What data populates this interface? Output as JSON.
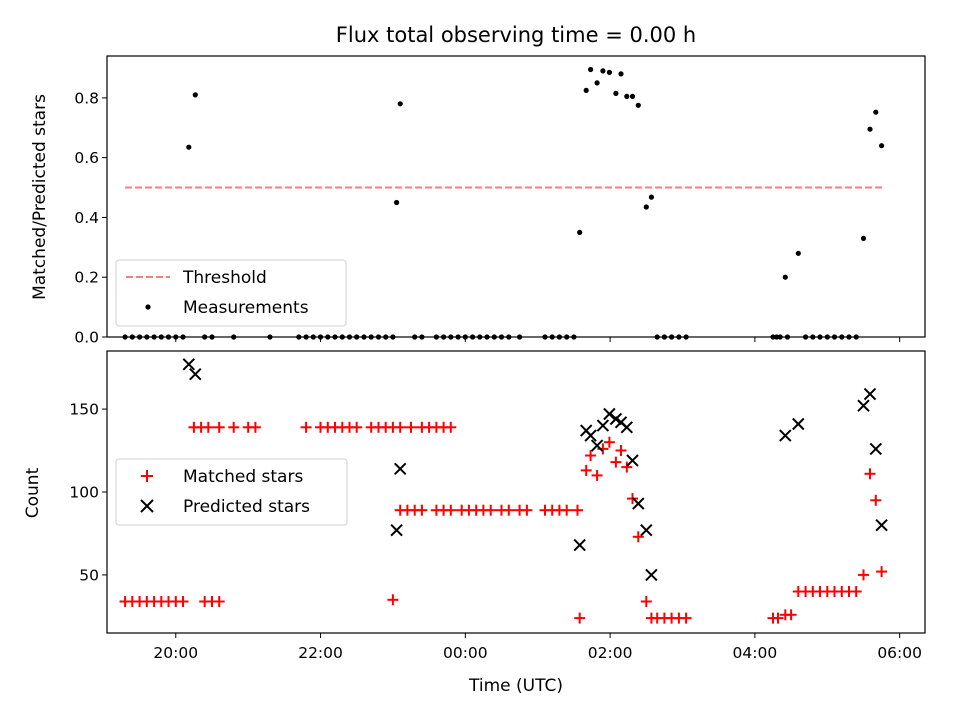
{
  "chart_data": [
    {
      "type": "scatter",
      "title": "Flux total observing time = 0.00 h",
      "ylabel": "Matched/Predicted stars",
      "xlabel": "",
      "ylim": [
        0,
        0.94
      ],
      "xlim": [
        -4.95,
        6.35
      ],
      "x_unit": "hours relative to 00:00 UTC",
      "yticks": [
        0.0,
        0.2,
        0.4,
        0.6,
        0.8
      ],
      "yticklabels": [
        "0.0",
        "0.2",
        "0.4",
        "0.6",
        "0.8"
      ],
      "legend_placement": "lower-left",
      "grid": false,
      "threshold": {
        "name": "Threshold",
        "value": 0.5,
        "x": [
          -4.7,
          5.78
        ],
        "color": "#f08080"
      },
      "series": [
        {
          "name": "Measurements",
          "color": "#000000",
          "marker": "dot",
          "points": [
            [
              -3.82,
              0.635
            ],
            [
              -3.73,
              0.81
            ],
            [
              -0.95,
              0.45
            ],
            [
              -0.9,
              0.78
            ],
            [
              1.58,
              0.35
            ],
            [
              1.67,
              0.825
            ],
            [
              1.73,
              0.895
            ],
            [
              1.82,
              0.85
            ],
            [
              1.9,
              0.89
            ],
            [
              1.99,
              0.885
            ],
            [
              2.08,
              0.815
            ],
            [
              2.15,
              0.88
            ],
            [
              2.23,
              0.805
            ],
            [
              2.31,
              0.805
            ],
            [
              2.39,
              0.775
            ],
            [
              2.5,
              0.435
            ],
            [
              2.57,
              0.468
            ],
            [
              4.42,
              0.2
            ],
            [
              4.6,
              0.28
            ],
            [
              5.5,
              0.33
            ],
            [
              5.59,
              0.695
            ],
            [
              5.67,
              0.752
            ],
            [
              5.75,
              0.64
            ],
            [
              -4.7,
              0
            ],
            [
              -4.6,
              0
            ],
            [
              -4.5,
              0
            ],
            [
              -4.4,
              0
            ],
            [
              -4.3,
              0
            ],
            [
              -4.2,
              0
            ],
            [
              -4.1,
              0
            ],
            [
              -4.0,
              0
            ],
            [
              -3.9,
              0
            ],
            [
              -3.6,
              0
            ],
            [
              -3.5,
              0
            ],
            [
              -3.2,
              0
            ],
            [
              -2.7,
              0
            ],
            [
              -2.3,
              0
            ],
            [
              -2.2,
              0
            ],
            [
              -2.1,
              0
            ],
            [
              -2.0,
              0
            ],
            [
              -1.9,
              0
            ],
            [
              -1.8,
              0
            ],
            [
              -1.7,
              0
            ],
            [
              -1.6,
              0
            ],
            [
              -1.5,
              0
            ],
            [
              -1.4,
              0
            ],
            [
              -1.3,
              0
            ],
            [
              -1.2,
              0
            ],
            [
              -1.1,
              0
            ],
            [
              -1.0,
              0
            ],
            [
              -0.7,
              0
            ],
            [
              -0.6,
              0
            ],
            [
              -0.4,
              0
            ],
            [
              -0.3,
              0
            ],
            [
              -0.2,
              0
            ],
            [
              -0.1,
              0
            ],
            [
              0.0,
              0
            ],
            [
              0.1,
              0
            ],
            [
              0.2,
              0
            ],
            [
              0.3,
              0
            ],
            [
              0.4,
              0
            ],
            [
              0.5,
              0
            ],
            [
              0.6,
              0
            ],
            [
              0.75,
              0
            ],
            [
              1.1,
              0
            ],
            [
              1.2,
              0
            ],
            [
              1.3,
              0
            ],
            [
              1.4,
              0
            ],
            [
              1.5,
              0
            ],
            [
              2.65,
              0
            ],
            [
              2.75,
              0
            ],
            [
              2.85,
              0
            ],
            [
              2.95,
              0
            ],
            [
              3.05,
              0
            ],
            [
              4.25,
              0
            ],
            [
              4.3,
              0
            ],
            [
              4.35,
              0
            ],
            [
              4.45,
              0
            ],
            [
              4.7,
              0
            ],
            [
              4.8,
              0
            ],
            [
              4.9,
              0
            ],
            [
              5.0,
              0
            ],
            [
              5.1,
              0
            ],
            [
              5.2,
              0
            ],
            [
              5.3,
              0
            ],
            [
              5.4,
              0
            ]
          ]
        }
      ]
    },
    {
      "type": "scatter",
      "title": "",
      "ylabel": "Count",
      "xlabel": "Time (UTC)",
      "ylim": [
        15,
        185
      ],
      "xlim": [
        -4.95,
        6.35
      ],
      "x_unit": "hours relative to 00:00 UTC",
      "xticks": [
        -4,
        -2,
        0,
        2,
        4,
        6
      ],
      "xticklabels": [
        "20:00",
        "22:00",
        "00:00",
        "02:00",
        "04:00",
        "06:00"
      ],
      "yticks": [
        50,
        100,
        150
      ],
      "yticklabels": [
        "50",
        "100",
        "150"
      ],
      "legend_placement": "center-left",
      "grid": false,
      "series": [
        {
          "name": "Matched stars",
          "color": "#ff0000",
          "marker": "plus",
          "points": [
            [
              -4.7,
              34
            ],
            [
              -4.6,
              34
            ],
            [
              -4.5,
              34
            ],
            [
              -4.4,
              34
            ],
            [
              -4.3,
              34
            ],
            [
              -4.2,
              34
            ],
            [
              -4.1,
              34
            ],
            [
              -4.0,
              34
            ],
            [
              -3.9,
              34
            ],
            [
              -3.6,
              34
            ],
            [
              -3.5,
              34
            ],
            [
              -3.4,
              34
            ],
            [
              -3.75,
              139
            ],
            [
              -3.65,
              139
            ],
            [
              -3.55,
              139
            ],
            [
              -3.4,
              139
            ],
            [
              -3.2,
              139
            ],
            [
              -3.0,
              139
            ],
            [
              -2.9,
              139
            ],
            [
              -2.2,
              139
            ],
            [
              -2.0,
              139
            ],
            [
              -1.9,
              139
            ],
            [
              -1.8,
              139
            ],
            [
              -1.7,
              139
            ],
            [
              -1.6,
              139
            ],
            [
              -1.5,
              139
            ],
            [
              -1.3,
              139
            ],
            [
              -1.2,
              139
            ],
            [
              -1.1,
              139
            ],
            [
              -1.0,
              139
            ],
            [
              -0.9,
              139
            ],
            [
              -0.75,
              139
            ],
            [
              -0.6,
              139
            ],
            [
              -0.5,
              139
            ],
            [
              -0.4,
              139
            ],
            [
              -0.3,
              139
            ],
            [
              -0.2,
              139
            ],
            [
              -1.0,
              35
            ],
            [
              -0.9,
              89
            ],
            [
              -0.8,
              89
            ],
            [
              -0.7,
              89
            ],
            [
              -0.6,
              89
            ],
            [
              -0.4,
              89
            ],
            [
              -0.3,
              89
            ],
            [
              -0.2,
              89
            ],
            [
              -0.05,
              89
            ],
            [
              0.05,
              89
            ],
            [
              0.15,
              89
            ],
            [
              0.25,
              89
            ],
            [
              0.35,
              89
            ],
            [
              0.5,
              89
            ],
            [
              0.6,
              89
            ],
            [
              0.75,
              89
            ],
            [
              0.85,
              89
            ],
            [
              1.1,
              89
            ],
            [
              1.2,
              89
            ],
            [
              1.3,
              89
            ],
            [
              1.4,
              89
            ],
            [
              1.55,
              89
            ],
            [
              1.58,
              24
            ],
            [
              1.67,
              113
            ],
            [
              1.73,
              122
            ],
            [
              1.82,
              110
            ],
            [
              1.9,
              126
            ],
            [
              1.99,
              130
            ],
            [
              2.08,
              118
            ],
            [
              2.15,
              125
            ],
            [
              2.23,
              115
            ],
            [
              2.31,
              96
            ],
            [
              2.39,
              73
            ],
            [
              2.5,
              34
            ],
            [
              2.57,
              24
            ],
            [
              2.65,
              24
            ],
            [
              2.75,
              24
            ],
            [
              2.85,
              24
            ],
            [
              2.95,
              24
            ],
            [
              3.05,
              24
            ],
            [
              4.25,
              24
            ],
            [
              4.32,
              24
            ],
            [
              4.42,
              26
            ],
            [
              4.5,
              26
            ],
            [
              4.6,
              40
            ],
            [
              4.7,
              40
            ],
            [
              4.8,
              40
            ],
            [
              4.9,
              40
            ],
            [
              5.0,
              40
            ],
            [
              5.1,
              40
            ],
            [
              5.2,
              40
            ],
            [
              5.3,
              40
            ],
            [
              5.4,
              40
            ],
            [
              5.5,
              50
            ],
            [
              5.59,
              111
            ],
            [
              5.67,
              95
            ],
            [
              5.75,
              52
            ]
          ]
        },
        {
          "name": "Predicted stars",
          "color": "#000000",
          "marker": "x",
          "points": [
            [
              -3.82,
              177
            ],
            [
              -3.73,
              171
            ],
            [
              -0.95,
              77
            ],
            [
              -0.9,
              114
            ],
            [
              1.58,
              68
            ],
            [
              1.67,
              137
            ],
            [
              1.73,
              134
            ],
            [
              1.82,
              128
            ],
            [
              1.9,
              140
            ],
            [
              1.99,
              147
            ],
            [
              2.08,
              144
            ],
            [
              2.15,
              142
            ],
            [
              2.23,
              139
            ],
            [
              2.31,
              119
            ],
            [
              2.39,
              93
            ],
            [
              2.5,
              77
            ],
            [
              2.57,
              50
            ],
            [
              4.42,
              134
            ],
            [
              4.6,
              141
            ],
            [
              5.5,
              152
            ],
            [
              5.59,
              159
            ],
            [
              5.67,
              126
            ],
            [
              5.75,
              80
            ]
          ]
        }
      ]
    }
  ]
}
